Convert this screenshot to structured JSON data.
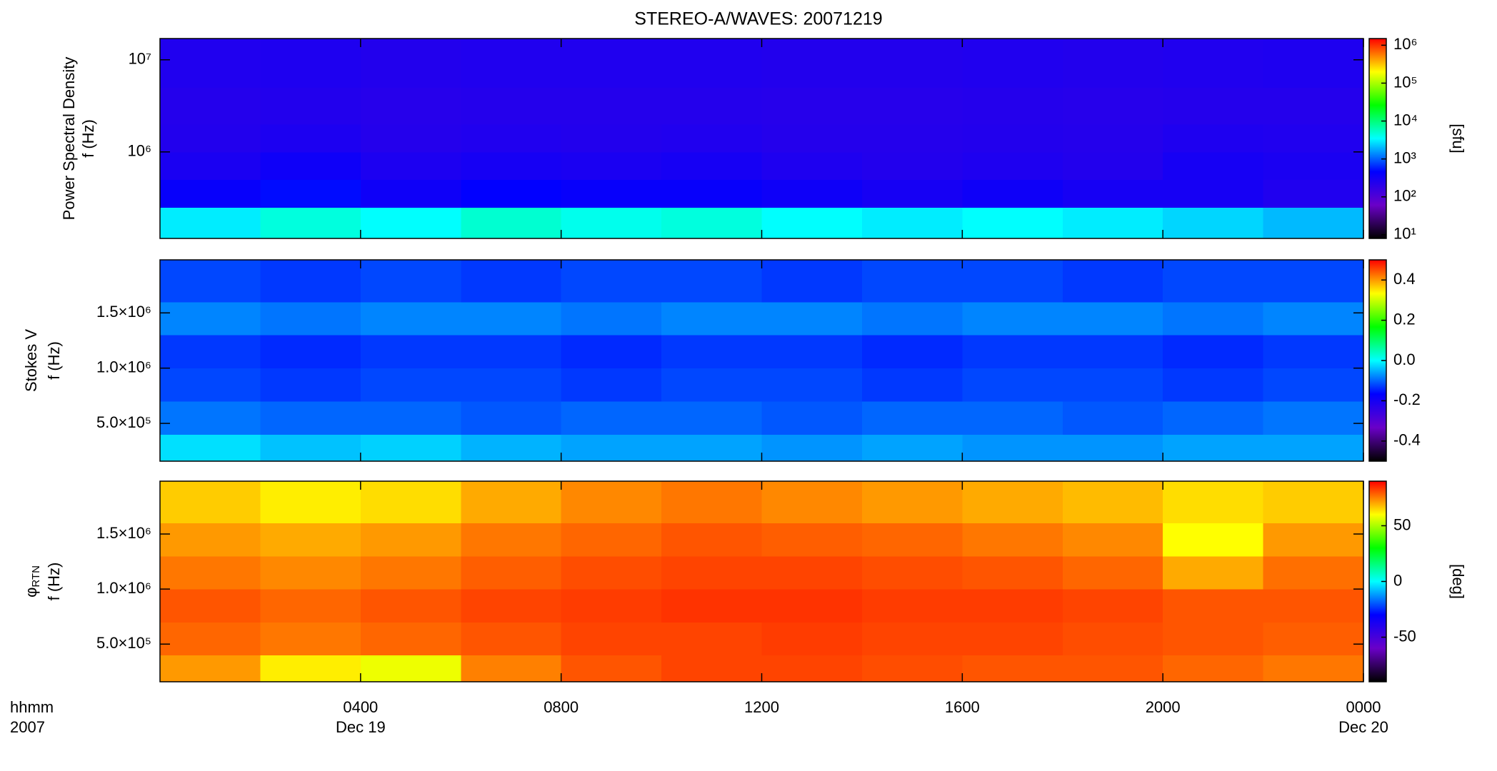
{
  "chart_data": [
    {
      "type": "heatmap",
      "title": "STEREO-A/WAVES: 20071219",
      "ylabel": [
        "Power Spectral Density",
        "f (Hz)"
      ],
      "xlim": [
        0,
        24
      ],
      "xticks": [
        4,
        8,
        12,
        16,
        20,
        24
      ],
      "ylog": true,
      "ylim": [
        115000,
        17000000
      ],
      "yticks": [
        {
          "value": 1000000,
          "label": "10⁶"
        },
        {
          "value": 10000000,
          "label": "10⁷"
        }
      ],
      "time_bins": [
        0,
        2,
        4,
        6,
        8,
        10,
        12,
        14,
        16,
        18,
        20,
        22,
        24
      ],
      "freq_bins": [
        115000,
        250000,
        500000,
        1000000,
        2000000,
        5000000,
        17000000
      ],
      "z": [
        [
          3000,
          4500,
          3500,
          5000,
          4000,
          4500,
          3500,
          3000,
          3500,
          3000,
          2500,
          2000
        ],
        [
          400,
          500,
          350,
          450,
          400,
          400,
          350,
          300,
          350,
          300,
          300,
          250
        ],
        [
          280,
          350,
          270,
          300,
          280,
          300,
          260,
          240,
          260,
          240,
          300,
          280
        ],
        [
          240,
          270,
          230,
          250,
          240,
          250,
          230,
          230,
          240,
          230,
          260,
          250
        ],
        [
          230,
          240,
          220,
          230,
          230,
          230,
          220,
          220,
          230,
          220,
          230,
          230
        ],
        [
          250,
          260,
          240,
          250,
          250,
          250,
          240,
          240,
          250,
          240,
          250,
          260
        ]
      ],
      "clog": true,
      "clim": [
        8,
        1500000
      ],
      "cticks": [
        {
          "value": 10,
          "label": "10¹"
        },
        {
          "value": 100,
          "label": "10²"
        },
        {
          "value": 1000,
          "label": "10³"
        },
        {
          "value": 10000,
          "label": "10⁴"
        },
        {
          "value": 100000,
          "label": "10⁵"
        },
        {
          "value": 1000000,
          "label": "10⁶"
        }
      ],
      "clabel": "[sfu]",
      "colormap": [
        "#000000",
        "#6a00c8",
        "#0000ff",
        "#00ffff",
        "#00ff00",
        "#ffff00",
        "#ff0000"
      ]
    },
    {
      "type": "heatmap",
      "ylabel": [
        "Stokes V",
        "f (Hz)"
      ],
      "xlim": [
        0,
        24
      ],
      "xticks": [
        4,
        8,
        12,
        16,
        20,
        24
      ],
      "ylog": false,
      "ylim": [
        158000,
        1980000
      ],
      "yticks": [
        {
          "value": 500000,
          "label": "5.0×10⁵"
        },
        {
          "value": 1000000,
          "label": "1.0×10⁶"
        },
        {
          "value": 1500000,
          "label": "1.5×10⁶"
        }
      ],
      "time_bins": [
        0,
        2,
        4,
        6,
        8,
        10,
        12,
        14,
        16,
        18,
        20,
        22,
        24
      ],
      "freq_bins": [
        158000,
        400000,
        700000,
        1000000,
        1300000,
        1600000,
        1980000
      ],
      "z": [
        [
          -0.02,
          -0.04,
          -0.03,
          -0.05,
          -0.06,
          -0.06,
          -0.07,
          -0.06,
          -0.07,
          -0.07,
          -0.06,
          -0.06
        ],
        [
          -0.09,
          -0.1,
          -0.1,
          -0.11,
          -0.1,
          -0.1,
          -0.11,
          -0.1,
          -0.1,
          -0.11,
          -0.1,
          -0.09
        ],
        [
          -0.12,
          -0.13,
          -0.12,
          -0.12,
          -0.13,
          -0.12,
          -0.12,
          -0.13,
          -0.12,
          -0.12,
          -0.13,
          -0.12
        ],
        [
          -0.13,
          -0.14,
          -0.13,
          -0.13,
          -0.14,
          -0.13,
          -0.13,
          -0.14,
          -0.13,
          -0.13,
          -0.14,
          -0.13
        ],
        [
          -0.08,
          -0.09,
          -0.08,
          -0.08,
          -0.09,
          -0.08,
          -0.08,
          -0.09,
          -0.08,
          -0.08,
          -0.09,
          -0.08
        ],
        [
          -0.12,
          -0.13,
          -0.12,
          -0.13,
          -0.12,
          -0.12,
          -0.13,
          -0.12,
          -0.12,
          -0.13,
          -0.12,
          -0.12
        ]
      ],
      "clog": false,
      "clim": [
        -0.5,
        0.5
      ],
      "cticks": [
        -0.4,
        -0.2,
        {
          "value": 0,
          "label": "0.0"
        },
        0.2,
        0.4
      ],
      "colormap": [
        "#000000",
        "#6a00c8",
        "#0000ff",
        "#00ffff",
        "#00ff00",
        "#ffff00",
        "#ff0000"
      ]
    },
    {
      "type": "heatmap",
      "ylabel": [
        "φ",
        "f (Hz)"
      ],
      "ylabel_sub": "RTN",
      "xlim": [
        0,
        24
      ],
      "xticks": [
        {
          "value": 4,
          "label": "0400"
        },
        {
          "value": 8,
          "label": "0800"
        },
        {
          "value": 12,
          "label": "1200"
        },
        {
          "value": 16,
          "label": "1600"
        },
        {
          "value": 20,
          "label": "2000"
        },
        {
          "value": 24,
          "label": "0000"
        }
      ],
      "date_labels": [
        {
          "value": 4,
          "label": "Dec 19"
        },
        {
          "value": 24,
          "label": "Dec 20"
        }
      ],
      "xlabel": "hhmm",
      "year_label": "2007",
      "ylog": false,
      "ylim": [
        158000,
        1980000
      ],
      "yticks": [
        {
          "value": 500000,
          "label": "5.0×10⁵"
        },
        {
          "value": 1000000,
          "label": "1.0×10⁶"
        },
        {
          "value": 1500000,
          "label": "1.5×10⁶"
        }
      ],
      "time_bins": [
        0,
        2,
        4,
        6,
        8,
        10,
        12,
        14,
        16,
        18,
        20,
        22,
        24
      ],
      "freq_bins": [
        158000,
        400000,
        700000,
        1000000,
        1300000,
        1600000,
        1980000
      ],
      "z": [
        [
          72,
          62,
          58,
          75,
          80,
          82,
          82,
          81,
          80,
          80,
          78,
          76
        ],
        [
          78,
          76,
          78,
          80,
          82,
          82,
          83,
          82,
          82,
          81,
          80,
          79
        ],
        [
          80,
          78,
          80,
          82,
          83,
          84,
          84,
          83,
          83,
          82,
          80,
          80
        ],
        [
          76,
          74,
          76,
          79,
          81,
          82,
          82,
          81,
          80,
          78,
          70,
          77
        ],
        [
          72,
          70,
          72,
          76,
          78,
          80,
          79,
          78,
          76,
          74,
          60,
          72
        ],
        [
          66,
          62,
          64,
          70,
          74,
          76,
          74,
          72,
          70,
          68,
          64,
          66
        ]
      ],
      "clog": false,
      "clim": [
        -90,
        90
      ],
      "cticks": [
        -50,
        0,
        50
      ],
      "clabel": "[deg]",
      "colormap": [
        "#000000",
        "#6a00c8",
        "#0000ff",
        "#00ffff",
        "#00ff00",
        "#ffff00",
        "#ff0000"
      ]
    }
  ]
}
